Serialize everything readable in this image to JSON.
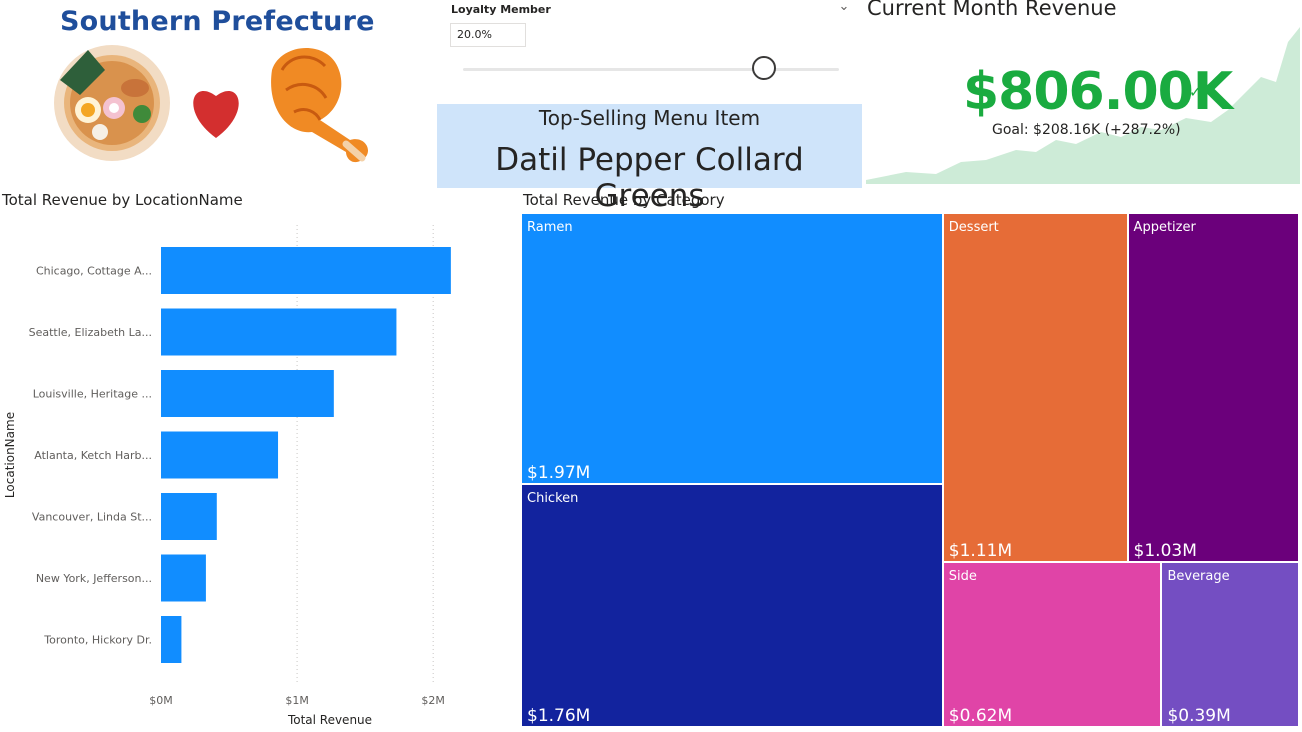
{
  "logo": {
    "title": "Southern Prefecture",
    "icons": [
      "ramen-bowl-icon",
      "heart-icon",
      "fried-chicken-icon"
    ]
  },
  "slicer": {
    "title": "Loyalty Member",
    "value": "20.0%",
    "slider_fraction": 0.8
  },
  "top_selling": {
    "label": "Top-Selling Menu Item",
    "value": "Datil Pepper Collard Greens"
  },
  "kpi": {
    "title": "Current Month Revenue",
    "value": "$806.00K",
    "goal_text": "Goal: $208.16K (+287.2%)",
    "value_color": "#1aab40",
    "trend_color": "#cdebd7"
  },
  "chart_data": [
    {
      "type": "bar",
      "orientation": "horizontal",
      "title": "Total Revenue by LocationName",
      "xlabel": "Total Revenue",
      "ylabel": "LocationName",
      "categories": [
        "Chicago, Cottage A...",
        "Seattle, Elizabeth La...",
        "Louisville, Heritage ...",
        "Atlanta, Ketch Harb...",
        "Vancouver, Linda St...",
        "New York, Jefferson...",
        "Toronto, Hickory Dr."
      ],
      "values": [
        2.13,
        1.73,
        1.27,
        0.86,
        0.41,
        0.33,
        0.15
      ],
      "xlim": [
        0,
        2.3
      ],
      "xticks": [
        "$0M",
        "$1M",
        "$2M"
      ],
      "xtick_values": [
        0,
        1,
        2
      ],
      "grid": true,
      "color": "#118dff"
    },
    {
      "type": "treemap",
      "title": "Total Revenue by Category",
      "items": [
        {
          "name": "Ramen",
          "value": 1.97,
          "label": "$1.97M",
          "color": "#118dff"
        },
        {
          "name": "Chicken",
          "value": 1.76,
          "label": "$1.76M",
          "color": "#12239e"
        },
        {
          "name": "Dessert",
          "value": 1.11,
          "label": "$1.11M",
          "color": "#e66c37"
        },
        {
          "name": "Appetizer",
          "value": 1.03,
          "label": "$1.03M",
          "color": "#6b007b"
        },
        {
          "name": "Side",
          "value": 0.62,
          "label": "$0.62M",
          "color": "#e044a7"
        },
        {
          "name": "Beverage",
          "value": 0.39,
          "label": "$0.39M",
          "color": "#744ec2"
        }
      ]
    }
  ]
}
